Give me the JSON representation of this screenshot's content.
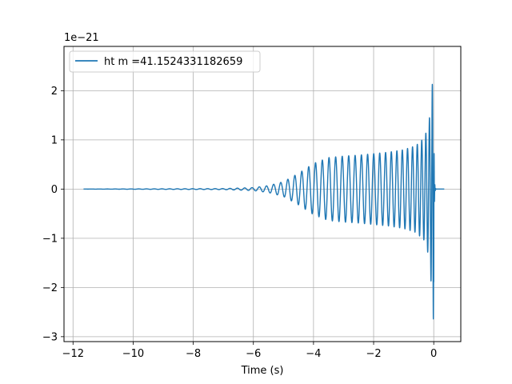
{
  "chart_data": {
    "type": "line",
    "title": "",
    "xlabel": "Time (s)",
    "ylabel": "",
    "y_offset_text": "1e−21",
    "xlim": [
      -12.3,
      0.9
    ],
    "ylim": [
      -3.1,
      2.9
    ],
    "x_ticks": [
      -12,
      -10,
      -8,
      -6,
      -4,
      -2,
      0
    ],
    "x_tick_labels": [
      "−12",
      "−10",
      "−8",
      "−6",
      "−4",
      "−2",
      "0"
    ],
    "y_ticks": [
      -3,
      -2,
      -1,
      0,
      1,
      2
    ],
    "y_tick_labels": [
      "−3",
      "−2",
      "−1",
      "0",
      "1",
      "2"
    ],
    "grid": true,
    "legend_position": "top-left",
    "series": [
      {
        "name": "ht m =41.1524331182659",
        "color": "#1f77b4",
        "x_start": -11.65,
        "x_end": 0.35,
        "merger_time": 0.0,
        "envelope_upper": {
          "x": [
            -11.65,
            -7.0,
            -6.0,
            -5.5,
            -5.0,
            -4.5,
            -4.0,
            -3.5,
            -3.0,
            -2.5,
            -2.0,
            -1.5,
            -1.0,
            -0.6,
            -0.3,
            -0.15,
            -0.05,
            0.0
          ],
          "y": [
            0.0,
            0.01,
            0.03,
            0.07,
            0.15,
            0.32,
            0.52,
            0.64,
            0.67,
            0.69,
            0.72,
            0.75,
            0.8,
            0.88,
            1.05,
            1.4,
            2.1,
            2.65
          ]
        },
        "envelope_lower": {
          "x": [
            -11.65,
            -7.0,
            -6.0,
            -5.5,
            -5.0,
            -4.5,
            -4.0,
            -3.5,
            -3.0,
            -2.5,
            -2.0,
            -1.5,
            -1.0,
            -0.6,
            -0.3,
            -0.15,
            -0.05,
            0.0
          ],
          "y": [
            0.0,
            -0.01,
            -0.03,
            -0.07,
            -0.15,
            -0.32,
            -0.52,
            -0.64,
            -0.67,
            -0.69,
            -0.72,
            -0.75,
            -0.8,
            -0.88,
            -1.05,
            -1.4,
            -2.2,
            -2.8
          ]
        }
      }
    ]
  }
}
